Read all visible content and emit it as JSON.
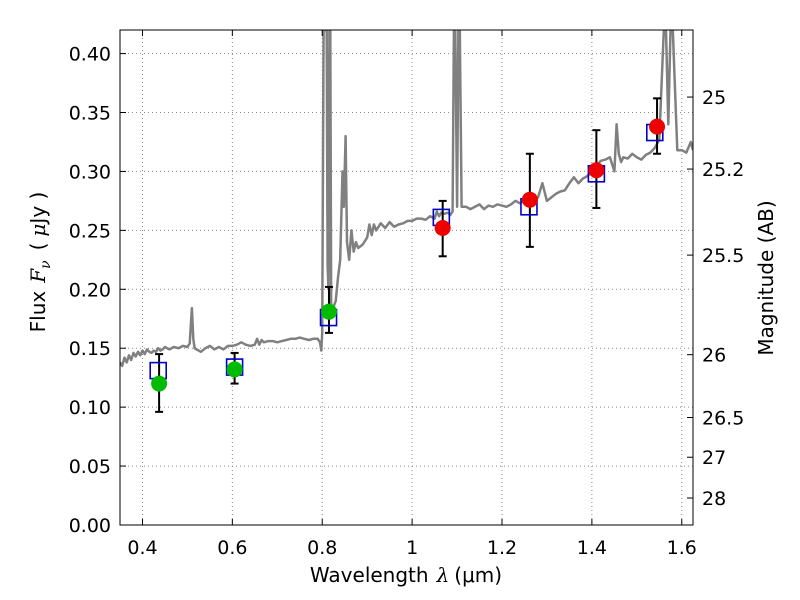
{
  "chart_data": {
    "type": "scatter",
    "title": "",
    "xlabel_text": "Wavelength",
    "xlabel_symbol": "λ",
    "xlabel_unit": "(μm)",
    "ylabel_text": "Flux",
    "ylabel_symbol": "F",
    "ylabel_subscript": "ν",
    "ylabel_unit_open": "(",
    "ylabel_unit_mu": "μ",
    "ylabel_unit_rest": "Jy )",
    "ylabel_right": "Magnitude (AB)",
    "xlim": [
      0.35,
      1.625
    ],
    "ylim": [
      0.0,
      0.42
    ],
    "grid": true,
    "x_ticks": [
      0.4,
      0.6,
      0.8,
      1.0,
      1.2,
      1.4,
      1.6
    ],
    "x_tick_labels": [
      "0.4",
      "0.6",
      "0.8",
      "1",
      "1.2",
      "1.4",
      "1.6"
    ],
    "y_ticks": [
      0.0,
      0.05,
      0.1,
      0.15,
      0.2,
      0.25,
      0.3,
      0.35,
      0.4
    ],
    "y_tick_labels": [
      "0.00",
      "0.05",
      "0.10",
      "0.15",
      "0.20",
      "0.25",
      "0.30",
      "0.35",
      "0.40"
    ],
    "right_ticks": [
      {
        "label": "25",
        "flux": 0.3631
      },
      {
        "label": "25.2",
        "flux": 0.302
      },
      {
        "label": "25.5",
        "flux": 0.229
      },
      {
        "label": "26",
        "flux": 0.1445
      },
      {
        "label": "26.5",
        "flux": 0.0912
      },
      {
        "label": "27",
        "flux": 0.0575
      },
      {
        "label": "28",
        "flux": 0.0229
      }
    ],
    "colors": {
      "model": "#808080",
      "model_points": "#0000cc",
      "optical": "#00bb00",
      "infrared": "#ee0000",
      "error_bars": "#000000",
      "grid": "#888888"
    },
    "series": [
      {
        "name": "model spectrum",
        "type": "line",
        "x": [
          0.35,
          0.355,
          0.36,
          0.365,
          0.37,
          0.375,
          0.38,
          0.385,
          0.39,
          0.395,
          0.4,
          0.405,
          0.41,
          0.415,
          0.42,
          0.425,
          0.43,
          0.435,
          0.44,
          0.445,
          0.45,
          0.46,
          0.47,
          0.48,
          0.49,
          0.5,
          0.505,
          0.51,
          0.513,
          0.516,
          0.52,
          0.53,
          0.54,
          0.55,
          0.56,
          0.57,
          0.58,
          0.59,
          0.6,
          0.61,
          0.62,
          0.63,
          0.64,
          0.65,
          0.655,
          0.66,
          0.665,
          0.67,
          0.68,
          0.69,
          0.7,
          0.71,
          0.72,
          0.73,
          0.74,
          0.75,
          0.76,
          0.77,
          0.78,
          0.79,
          0.795,
          0.798,
          0.8,
          0.803,
          0.806,
          0.81,
          0.812,
          0.814,
          0.816,
          0.818,
          0.82,
          0.83,
          0.835,
          0.84,
          0.845,
          0.848,
          0.852,
          0.855,
          0.86,
          0.865,
          0.87,
          0.875,
          0.88,
          0.89,
          0.9,
          0.905,
          0.91,
          0.915,
          0.92,
          0.93,
          0.94,
          0.95,
          0.96,
          0.97,
          0.98,
          0.99,
          1.0,
          1.01,
          1.02,
          1.03,
          1.04,
          1.05,
          1.055,
          1.06,
          1.065,
          1.07,
          1.08,
          1.085,
          1.09,
          1.093,
          1.096,
          1.1,
          1.103,
          1.106,
          1.11,
          1.12,
          1.13,
          1.14,
          1.15,
          1.16,
          1.17,
          1.18,
          1.19,
          1.2,
          1.21,
          1.22,
          1.23,
          1.24,
          1.25,
          1.26,
          1.27,
          1.28,
          1.29,
          1.3,
          1.31,
          1.32,
          1.33,
          1.34,
          1.35,
          1.36,
          1.37,
          1.38,
          1.39,
          1.4,
          1.41,
          1.42,
          1.43,
          1.44,
          1.45,
          1.455,
          1.46,
          1.465,
          1.47,
          1.48,
          1.49,
          1.5,
          1.51,
          1.52,
          1.53,
          1.54,
          1.55,
          1.56,
          1.565,
          1.57,
          1.575,
          1.58,
          1.59,
          1.6,
          1.61,
          1.62,
          1.625
        ],
        "y": [
          0.138,
          0.135,
          0.142,
          0.138,
          0.144,
          0.14,
          0.146,
          0.143,
          0.147,
          0.144,
          0.148,
          0.145,
          0.149,
          0.147,
          0.146,
          0.148,
          0.147,
          0.15,
          0.148,
          0.149,
          0.151,
          0.149,
          0.151,
          0.15,
          0.152,
          0.151,
          0.154,
          0.184,
          0.158,
          0.15,
          0.149,
          0.147,
          0.15,
          0.152,
          0.149,
          0.151,
          0.149,
          0.152,
          0.152,
          0.153,
          0.155,
          0.153,
          0.152,
          0.153,
          0.158,
          0.153,
          0.157,
          0.155,
          0.156,
          0.156,
          0.155,
          0.156,
          0.157,
          0.158,
          0.158,
          0.159,
          0.158,
          0.157,
          0.158,
          0.158,
          0.155,
          0.148,
          0.163,
          0.42,
          0.42,
          0.42,
          0.22,
          0.2,
          0.42,
          0.42,
          0.18,
          0.19,
          0.21,
          0.225,
          0.3,
          0.27,
          0.33,
          0.24,
          0.225,
          0.25,
          0.232,
          0.24,
          0.235,
          0.238,
          0.244,
          0.255,
          0.246,
          0.255,
          0.25,
          0.256,
          0.252,
          0.257,
          0.253,
          0.255,
          0.256,
          0.258,
          0.258,
          0.26,
          0.26,
          0.259,
          0.262,
          0.26,
          0.266,
          0.262,
          0.265,
          0.264,
          0.265,
          0.263,
          0.266,
          0.42,
          0.42,
          0.27,
          0.42,
          0.42,
          0.27,
          0.27,
          0.268,
          0.27,
          0.272,
          0.268,
          0.271,
          0.27,
          0.272,
          0.271,
          0.27,
          0.272,
          0.275,
          0.273,
          0.276,
          0.279,
          0.275,
          0.278,
          0.29,
          0.275,
          0.278,
          0.281,
          0.283,
          0.284,
          0.29,
          0.295,
          0.29,
          0.294,
          0.296,
          0.3,
          0.305,
          0.309,
          0.31,
          0.312,
          0.3,
          0.34,
          0.315,
          0.308,
          0.312,
          0.311,
          0.315,
          0.312,
          0.31,
          0.314,
          0.316,
          0.32,
          0.327,
          0.42,
          0.42,
          0.34,
          0.42,
          0.42,
          0.318,
          0.318,
          0.316,
          0.325,
          0.318
        ]
      },
      {
        "name": "model points",
        "type": "open-square",
        "x": [
          0.435,
          0.605,
          0.814,
          1.065,
          1.26,
          1.41,
          1.54
        ],
        "y": [
          0.131,
          0.134,
          0.176,
          0.261,
          0.27,
          0.298,
          0.333
        ]
      },
      {
        "name": "optical",
        "type": "filled-circle",
        "x": [
          0.437,
          0.605,
          0.815
        ],
        "y": [
          0.12,
          0.132,
          0.181
        ],
        "yerr_low": [
          0.096,
          0.12,
          0.163
        ],
        "yerr_high": [
          0.145,
          0.146,
          0.202
        ]
      },
      {
        "name": "infrared",
        "type": "filled-circle",
        "x": [
          1.068,
          1.262,
          1.41,
          1.545
        ],
        "y": [
          0.252,
          0.276,
          0.301,
          0.338
        ],
        "yerr_low": [
          0.228,
          0.236,
          0.269,
          0.315
        ],
        "yerr_high": [
          0.275,
          0.315,
          0.335,
          0.362
        ]
      }
    ]
  }
}
